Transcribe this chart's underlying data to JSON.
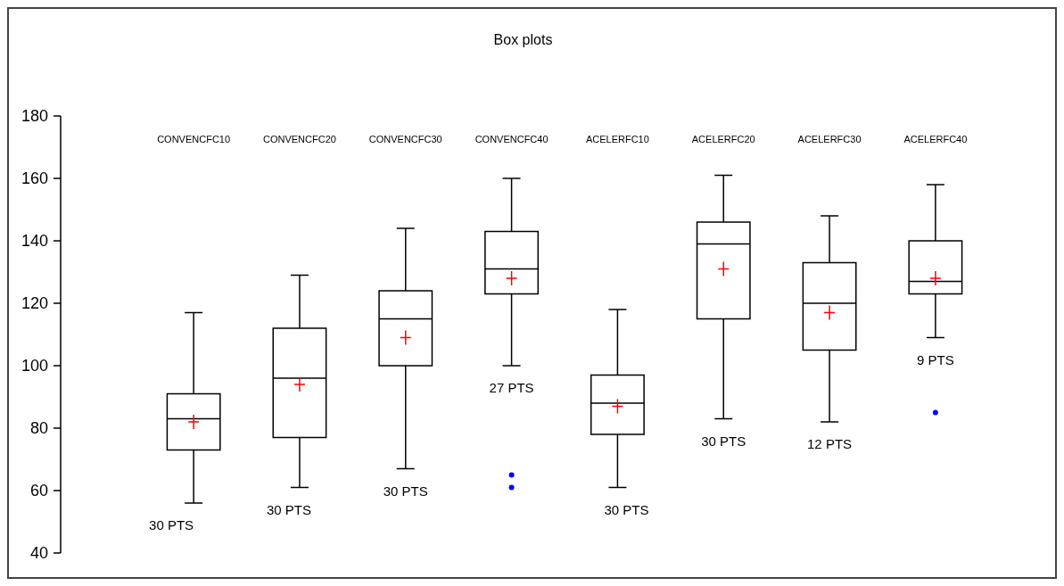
{
  "chart_data": {
    "type": "box",
    "title": "Box plots",
    "categories": [
      "CONVENCFC10",
      "CONVENCFC20",
      "CONVENCFC30",
      "CONVENCFC40",
      "ACELERFC10",
      "ACELERFC20",
      "ACELERFC30",
      "ACELERFC40"
    ],
    "boxes": [
      {
        "low": 56,
        "q1": 73,
        "median": 83,
        "q3": 91,
        "high": 117,
        "mean": 82
      },
      {
        "low": 61,
        "q1": 77,
        "median": 96,
        "q3": 112,
        "high": 129,
        "mean": 94
      },
      {
        "low": 67,
        "q1": 100,
        "median": 115,
        "q3": 124,
        "high": 144,
        "mean": 109
      },
      {
        "low": 100,
        "q1": 123,
        "median": 131,
        "q3": 143,
        "high": 160,
        "mean": 128,
        "outliers": [
          61,
          65
        ]
      },
      {
        "low": 61,
        "q1": 78,
        "median": 88,
        "q3": 97,
        "high": 118,
        "mean": 87
      },
      {
        "low": 83,
        "q1": 115,
        "median": 139,
        "q3": 146,
        "high": 161,
        "mean": 131
      },
      {
        "low": 82,
        "q1": 105,
        "median": 120,
        "q3": 133,
        "high": 148,
        "mean": 117
      },
      {
        "low": 109,
        "q1": 123,
        "median": 127,
        "q3": 140,
        "high": 158,
        "mean": 128,
        "outliers": [
          85
        ]
      }
    ],
    "ylim": [
      40,
      180
    ],
    "yticks": [
      40,
      60,
      80,
      100,
      120,
      140,
      160,
      180
    ],
    "annotations": [
      "30 PTS",
      "30 PTS",
      "30 PTS",
      "27 PTS",
      "30 PTS",
      "30 PTS",
      "12 PTS",
      "9 PTS"
    ]
  }
}
